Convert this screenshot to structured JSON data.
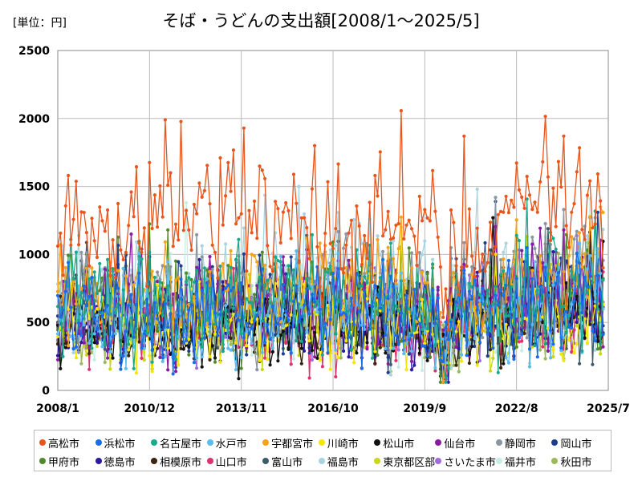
{
  "header": {
    "unit_label": "[単位：円]",
    "title": "そば・うどんの支出額[2008/1～2025/5]"
  },
  "chart_data": {
    "type": "line",
    "title": "そば・うどんの支出額[2008/1～2025/5]",
    "unit": "[単位：円]",
    "xlabel": "",
    "ylabel": "",
    "ylim": [
      0,
      2500
    ],
    "yticks": [
      0,
      500,
      1000,
      1500,
      2000,
      2500
    ],
    "xlim": [
      "2008/1",
      "2025/7"
    ],
    "xticks": [
      "2008/1",
      "2010/12",
      "2013/11",
      "2016/10",
      "2019/9",
      "2022/8",
      "2025/7"
    ],
    "grid": true,
    "legend_position": "bottom",
    "x_start": "2008/1",
    "x_end": "2025/5",
    "series": [
      {
        "name": "高松市",
        "color": "#e8561c",
        "anchors": [
          [
            2008,
            1180
          ],
          [
            2009,
            1150
          ],
          [
            2010,
            1120
          ],
          [
            2011,
            1300
          ],
          [
            2012,
            1250
          ],
          [
            2013,
            1180
          ],
          [
            2014,
            1300
          ],
          [
            2015,
            1260
          ],
          [
            2016,
            1150
          ],
          [
            2017,
            1100
          ],
          [
            2018,
            1250
          ],
          [
            2019,
            1200
          ],
          [
            2020,
            1150
          ],
          [
            2021,
            1050
          ],
          [
            2022,
            1150
          ],
          [
            2023,
            1450
          ],
          [
            2024,
            1400
          ],
          [
            2025,
            1250
          ]
        ],
        "amp": 0.17,
        "peaks": [
          [
            4,
            1580
          ],
          [
            41,
            1990
          ],
          [
            62,
            1710
          ],
          [
            77,
            1650
          ],
          [
            98,
            1800
          ],
          [
            121,
            1580
          ],
          [
            155,
            1870
          ],
          [
            170,
            1310
          ],
          [
            183,
            1310
          ],
          [
            187,
            1570
          ],
          [
            213,
            1520
          ],
          [
            218,
            1950
          ],
          [
            225,
            1910
          ],
          [
            232,
            2130
          ],
          [
            239,
            1860
          ],
          [
            227,
            1410
          ],
          [
            246,
            1480
          ],
          [
            249,
            1450
          ]
        ]
      },
      {
        "name": "浜松市",
        "color": "#1a6be6",
        "anchors": [
          [
            2008,
            560
          ],
          [
            2010,
            540
          ],
          [
            2012,
            520
          ],
          [
            2014,
            540
          ],
          [
            2016,
            560
          ],
          [
            2018,
            600
          ],
          [
            2020,
            520
          ],
          [
            2022,
            580
          ],
          [
            2024,
            640
          ],
          [
            2025,
            700
          ]
        ],
        "amp": 0.32,
        "peaks": []
      },
      {
        "name": "名古屋市",
        "color": "#1aa88a",
        "anchors": [
          [
            2008,
            620
          ],
          [
            2010,
            600
          ],
          [
            2012,
            620
          ],
          [
            2014,
            640
          ],
          [
            2016,
            650
          ],
          [
            2018,
            680
          ],
          [
            2020,
            560
          ],
          [
            2022,
            640
          ],
          [
            2024,
            720
          ],
          [
            2025,
            780
          ]
        ],
        "amp": 0.3,
        "peaks": [
          [
            5,
            1110
          ],
          [
            69,
            1110
          ]
        ]
      },
      {
        "name": "水戸市",
        "color": "#5bbcf0",
        "anchors": [
          [
            2008,
            540
          ],
          [
            2010,
            520
          ],
          [
            2012,
            530
          ],
          [
            2014,
            550
          ],
          [
            2016,
            560
          ],
          [
            2018,
            590
          ],
          [
            2020,
            500
          ],
          [
            2022,
            560
          ],
          [
            2024,
            620
          ],
          [
            2025,
            700
          ]
        ],
        "amp": 0.3,
        "peaks": []
      },
      {
        "name": "宇都宮市",
        "color": "#f7a21b",
        "anchors": [
          [
            2008,
            700
          ],
          [
            2010,
            680
          ],
          [
            2012,
            700
          ],
          [
            2014,
            720
          ],
          [
            2016,
            720
          ],
          [
            2018,
            760
          ],
          [
            2020,
            640
          ],
          [
            2022,
            720
          ],
          [
            2024,
            800
          ],
          [
            2025,
            850
          ]
        ],
        "amp": 0.28,
        "peaks": []
      },
      {
        "name": "川崎市",
        "color": "#f5e50a",
        "anchors": [
          [
            2008,
            480
          ],
          [
            2010,
            460
          ],
          [
            2012,
            470
          ],
          [
            2014,
            500
          ],
          [
            2016,
            510
          ],
          [
            2018,
            540
          ],
          [
            2020,
            420
          ],
          [
            2022,
            480
          ],
          [
            2024,
            470
          ],
          [
            2025,
            430
          ]
        ],
        "amp": 0.33,
        "peaks": [
          [
            131,
            1200
          ]
        ]
      },
      {
        "name": "松山市",
        "color": "#111111",
        "anchors": [
          [
            2008,
            430
          ],
          [
            2010,
            420
          ],
          [
            2012,
            430
          ],
          [
            2014,
            450
          ],
          [
            2016,
            460
          ],
          [
            2018,
            500
          ],
          [
            2020,
            430
          ],
          [
            2022,
            480
          ],
          [
            2024,
            540
          ],
          [
            2025,
            600
          ]
        ],
        "amp": 0.3,
        "peaks": [
          [
            166,
            1270
          ]
        ]
      },
      {
        "name": "仙台市",
        "color": "#8b1a9e",
        "anchors": [
          [
            2008,
            600
          ],
          [
            2010,
            580
          ],
          [
            2012,
            590
          ],
          [
            2014,
            610
          ],
          [
            2016,
            620
          ],
          [
            2018,
            650
          ],
          [
            2020,
            560
          ],
          [
            2022,
            620
          ],
          [
            2024,
            700
          ],
          [
            2025,
            750
          ]
        ],
        "amp": 0.3,
        "peaks": [
          [
            28,
            1150
          ]
        ]
      },
      {
        "name": "静岡市",
        "color": "#8a96a0",
        "anchors": [
          [
            2008,
            680
          ],
          [
            2010,
            660
          ],
          [
            2012,
            680
          ],
          [
            2014,
            700
          ],
          [
            2016,
            720
          ],
          [
            2018,
            760
          ],
          [
            2020,
            640
          ],
          [
            2022,
            720
          ],
          [
            2024,
            820
          ],
          [
            2025,
            880
          ]
        ],
        "amp": 0.28,
        "peaks": [
          [
            167,
            1420
          ],
          [
            205,
            1270
          ],
          [
            244,
            1660
          ]
        ]
      },
      {
        "name": "岡山市",
        "color": "#1f3d8a",
        "anchors": [
          [
            2008,
            580
          ],
          [
            2010,
            560
          ],
          [
            2012,
            570
          ],
          [
            2014,
            590
          ],
          [
            2016,
            600
          ],
          [
            2018,
            640
          ],
          [
            2020,
            560
          ],
          [
            2022,
            620
          ],
          [
            2024,
            700
          ],
          [
            2025,
            760
          ]
        ],
        "amp": 0.3,
        "peaks": [
          [
            209,
            1160
          ],
          [
            206,
            1310
          ]
        ]
      },
      {
        "name": "甲府市",
        "color": "#4f8a2a",
        "anchors": [
          [
            2008,
            620
          ],
          [
            2010,
            600
          ],
          [
            2012,
            610
          ],
          [
            2014,
            630
          ],
          [
            2016,
            640
          ],
          [
            2018,
            670
          ],
          [
            2020,
            580
          ],
          [
            2022,
            640
          ],
          [
            2024,
            700
          ],
          [
            2025,
            740
          ]
        ],
        "amp": 0.3,
        "peaks": []
      },
      {
        "name": "徳島市",
        "color": "#2a1aa0",
        "anchors": [
          [
            2008,
            520
          ],
          [
            2010,
            500
          ],
          [
            2012,
            510
          ],
          [
            2014,
            530
          ],
          [
            2016,
            540
          ],
          [
            2018,
            570
          ],
          [
            2020,
            490
          ],
          [
            2022,
            550
          ],
          [
            2024,
            620
          ],
          [
            2025,
            660
          ]
        ],
        "amp": 0.3,
        "peaks": []
      },
      {
        "name": "相模原市",
        "color": "#3b2410",
        "anchors": [
          [
            2008,
            440
          ],
          [
            2010,
            420
          ],
          [
            2012,
            430
          ],
          [
            2014,
            450
          ],
          [
            2016,
            460
          ],
          [
            2018,
            490
          ],
          [
            2020,
            420
          ],
          [
            2022,
            470
          ],
          [
            2024,
            520
          ],
          [
            2025,
            560
          ]
        ],
        "amp": 0.3,
        "peaks": []
      },
      {
        "name": "山口市",
        "color": "#e0306e",
        "anchors": [
          [
            2008,
            460
          ],
          [
            2010,
            440
          ],
          [
            2012,
            450
          ],
          [
            2014,
            470
          ],
          [
            2016,
            480
          ],
          [
            2018,
            510
          ],
          [
            2020,
            440
          ],
          [
            2022,
            490
          ],
          [
            2024,
            550
          ],
          [
            2025,
            590
          ]
        ],
        "amp": 0.3,
        "peaks": []
      },
      {
        "name": "富山市",
        "color": "#3d5a6a",
        "anchors": [
          [
            2008,
            600
          ],
          [
            2010,
            580
          ],
          [
            2012,
            590
          ],
          [
            2014,
            610
          ],
          [
            2016,
            620
          ],
          [
            2018,
            650
          ],
          [
            2020,
            560
          ],
          [
            2022,
            620
          ],
          [
            2024,
            690
          ],
          [
            2025,
            740
          ]
        ],
        "amp": 0.29,
        "peaks": [
          [
            95,
            1140
          ]
        ]
      },
      {
        "name": "福島市",
        "color": "#a9d4df",
        "anchors": [
          [
            2008,
            700
          ],
          [
            2010,
            680
          ],
          [
            2012,
            690
          ],
          [
            2014,
            710
          ],
          [
            2016,
            720
          ],
          [
            2018,
            750
          ],
          [
            2020,
            640
          ],
          [
            2022,
            700
          ],
          [
            2024,
            780
          ],
          [
            2025,
            820
          ]
        ],
        "amp": 0.3,
        "peaks": [
          [
            92,
            1500
          ],
          [
            160,
            1480
          ]
        ]
      },
      {
        "name": "東京都区部",
        "color": "#c9d61a",
        "anchors": [
          [
            2008,
            520
          ],
          [
            2010,
            500
          ],
          [
            2012,
            510
          ],
          [
            2014,
            530
          ],
          [
            2016,
            540
          ],
          [
            2018,
            570
          ],
          [
            2020,
            480
          ],
          [
            2022,
            540
          ],
          [
            2024,
            600
          ],
          [
            2025,
            640
          ]
        ],
        "amp": 0.3,
        "peaks": []
      },
      {
        "name": "さいたま市",
        "color": "#9e6be0",
        "anchors": [
          [
            2008,
            560
          ],
          [
            2010,
            540
          ],
          [
            2012,
            550
          ],
          [
            2014,
            570
          ],
          [
            2016,
            580
          ],
          [
            2018,
            610
          ],
          [
            2020,
            520
          ],
          [
            2022,
            580
          ],
          [
            2024,
            650
          ],
          [
            2025,
            700
          ]
        ],
        "amp": 0.3,
        "peaks": []
      },
      {
        "name": "福井市",
        "color": "#c6eee6",
        "anchors": [
          [
            2008,
            580
          ],
          [
            2010,
            560
          ],
          [
            2012,
            570
          ],
          [
            2014,
            590
          ],
          [
            2016,
            600
          ],
          [
            2018,
            630
          ],
          [
            2020,
            540
          ],
          [
            2022,
            600
          ],
          [
            2024,
            670
          ],
          [
            2025,
            720
          ]
        ],
        "amp": 0.3,
        "peaks": [
          [
            49,
            1380
          ]
        ]
      },
      {
        "name": "秋田市",
        "color": "#9bb85a",
        "anchors": [
          [
            2008,
            500
          ],
          [
            2010,
            480
          ],
          [
            2012,
            490
          ],
          [
            2014,
            510
          ],
          [
            2016,
            520
          ],
          [
            2018,
            550
          ],
          [
            2020,
            470
          ],
          [
            2022,
            530
          ],
          [
            2024,
            600
          ],
          [
            2025,
            640
          ]
        ],
        "amp": 0.3,
        "peaks": []
      }
    ]
  }
}
